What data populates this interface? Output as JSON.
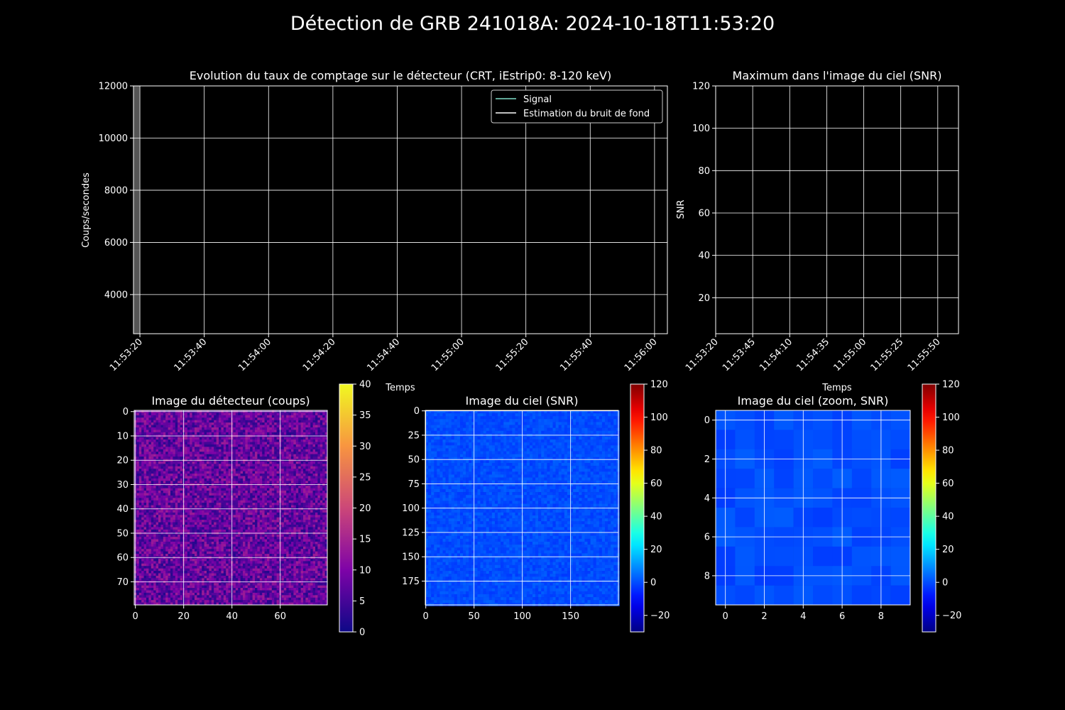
{
  "figure_title": "Détection de GRB 241018A: 2024-10-18T11:53:20",
  "chart_data": [
    {
      "type": "line",
      "title": "Evolution du taux de comptage sur le détecteur (CRT, iEstrip0: 8-120 keV)",
      "xlabel": "Temps",
      "ylabel": "Coups/secondes",
      "xlim": [
        "11:53:18",
        "11:56:04"
      ],
      "ylim": [
        2500,
        12000
      ],
      "grid": true,
      "legend_position": "upper-right",
      "xticks": [
        "11:53:20",
        "11:53:40",
        "11:54:00",
        "11:54:20",
        "11:54:40",
        "11:55:00",
        "11:55:20",
        "11:55:40",
        "11:56:00"
      ],
      "yticks": [
        4000,
        6000,
        8000,
        10000,
        12000
      ],
      "shaded_span": [
        "11:53:18",
        "11:53:20"
      ],
      "series": [
        {
          "name": "Signal",
          "color": "#7fdcc8",
          "values": []
        },
        {
          "name": "Estimation du bruit de fond",
          "color": "#ffffff",
          "values": []
        }
      ]
    },
    {
      "type": "line",
      "title": "Maximum dans l'image du ciel (SNR)",
      "xlabel": "Temps",
      "ylabel": "SNR",
      "xlim": [
        "11:53:20",
        "11:56:04"
      ],
      "ylim": [
        3,
        120
      ],
      "grid": true,
      "xticks": [
        "11:53:20",
        "11:53:45",
        "11:54:10",
        "11:54:35",
        "11:55:00",
        "11:55:25",
        "11:55:50"
      ],
      "yticks": [
        20,
        40,
        60,
        80,
        100,
        120
      ],
      "series": []
    },
    {
      "type": "heatmap",
      "title": "Image du détecteur (coups)",
      "colormap": "plasma",
      "color_range": [
        0,
        40
      ],
      "colorbar_ticks": [
        0,
        5,
        10,
        15,
        20,
        25,
        30,
        35,
        40
      ],
      "shape": [
        80,
        80
      ],
      "xticks": [
        0,
        20,
        40,
        60
      ],
      "yticks": [
        0,
        10,
        20,
        30,
        40,
        50,
        60,
        70
      ],
      "typical_value": 8,
      "grid": true
    },
    {
      "type": "heatmap",
      "title": "Image du ciel (SNR)",
      "colormap": "jet",
      "color_range": [
        -30,
        120
      ],
      "colorbar_ticks": [
        -20,
        0,
        20,
        40,
        60,
        80,
        100,
        120
      ],
      "shape": [
        200,
        200
      ],
      "xticks": [
        0,
        50,
        100,
        150
      ],
      "yticks": [
        0,
        25,
        50,
        75,
        100,
        125,
        150,
        175
      ],
      "typical_value": 0,
      "grid": true
    },
    {
      "type": "heatmap",
      "title": "Image du ciel (zoom, SNR)",
      "colormap": "jet",
      "color_range": [
        -30,
        120
      ],
      "colorbar_ticks": [
        -20,
        0,
        20,
        40,
        60,
        80,
        100,
        120
      ],
      "shape": [
        10,
        10
      ],
      "xticks": [
        0,
        2,
        4,
        6,
        8
      ],
      "yticks": [
        0,
        2,
        4,
        6,
        8
      ],
      "typical_value": 0,
      "grid": true
    }
  ]
}
